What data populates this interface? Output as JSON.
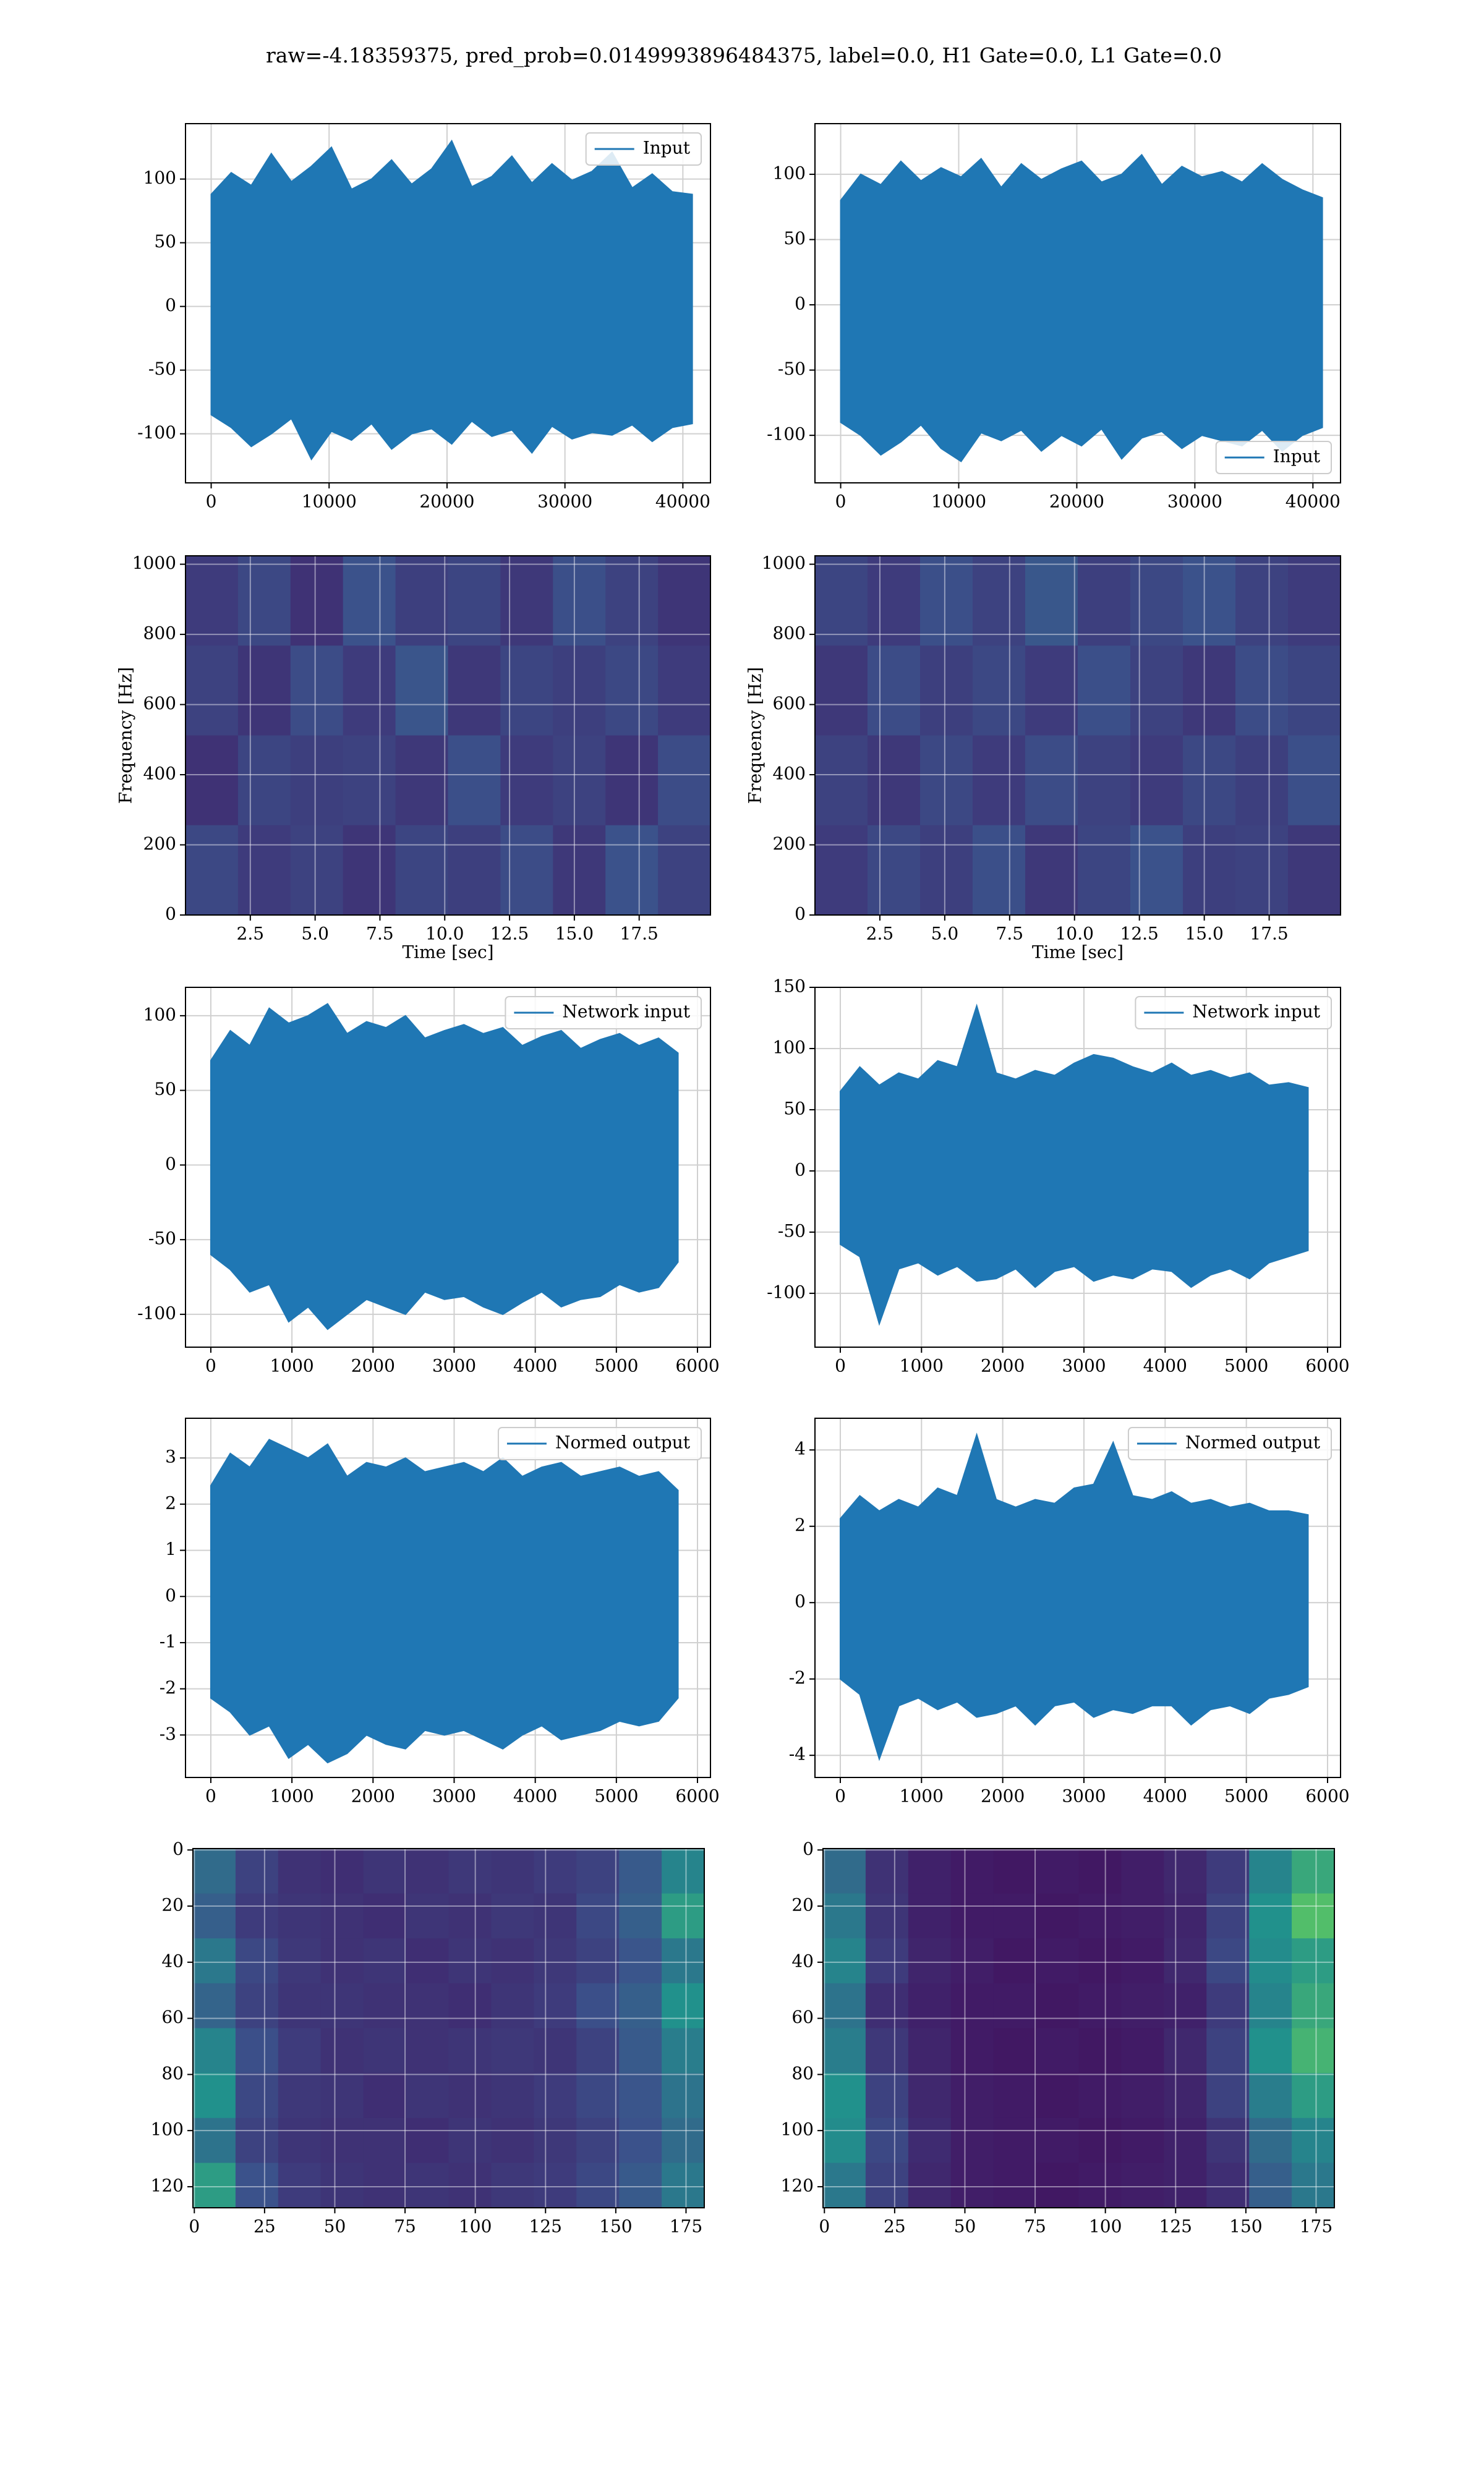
{
  "title": "raw=-4.18359375, pred_prob=0.0149993896484375, label=0.0, H1 Gate=0.0, L1 Gate=0.0",
  "chart_data": [
    {
      "type": "band",
      "legend": "upper right",
      "grid": true,
      "x": [
        0,
        1700,
        3400,
        5100,
        6800,
        8500,
        10200,
        11900,
        13600,
        15300,
        17000,
        18700,
        20400,
        22100,
        23800,
        25500,
        27200,
        28900,
        30600,
        32300,
        34000,
        35700,
        37400,
        39100,
        40800
      ],
      "series": [
        {
          "name": "Input",
          "color": "#1f77b4",
          "high": [
            88,
            105,
            95,
            120,
            98,
            110,
            125,
            92,
            100,
            115,
            96,
            108,
            130,
            94,
            102,
            118,
            97,
            112,
            99,
            106,
            121,
            93,
            104,
            90,
            88
          ],
          "low": [
            -85,
            -95,
            -110,
            -100,
            -88,
            -120,
            -98,
            -105,
            -92,
            -112,
            -100,
            -96,
            -108,
            -90,
            -102,
            -97,
            -115,
            -94,
            -104,
            -99,
            -101,
            -93,
            -106,
            -95,
            -92
          ]
        }
      ],
      "xlim": [
        -2177,
        42340
      ],
      "ylim": [
        -138.5,
        143.5
      ],
      "xticks": [
        0,
        10000,
        20000,
        30000,
        40000
      ],
      "yticks": [
        -100,
        -50,
        0,
        50,
        100
      ]
    },
    {
      "type": "band",
      "legend": "lower right",
      "grid": true,
      "x": [
        0,
        1700,
        3400,
        5100,
        6800,
        8500,
        10200,
        11900,
        13600,
        15300,
        17000,
        18700,
        20400,
        22100,
        23800,
        25500,
        27200,
        28900,
        30600,
        32300,
        34000,
        35700,
        37400,
        39100,
        40800
      ],
      "series": [
        {
          "name": "Input",
          "color": "#1f77b4",
          "high": [
            80,
            100,
            92,
            110,
            95,
            105,
            98,
            112,
            90,
            108,
            96,
            104,
            110,
            94,
            100,
            115,
            92,
            106,
            98,
            102,
            94,
            108,
            96,
            88,
            82
          ],
          "low": [
            -90,
            -100,
            -115,
            -105,
            -92,
            -110,
            -120,
            -98,
            -104,
            -96,
            -112,
            -100,
            -108,
            -95,
            -118,
            -102,
            -97,
            -110,
            -100,
            -104,
            -108,
            -96,
            -112,
            -100,
            -94
          ]
        }
      ],
      "xlim": [
        -2177,
        42340
      ],
      "ylim": [
        -136.4,
        138.8
      ],
      "xticks": [
        0,
        10000,
        20000,
        30000,
        40000
      ],
      "yticks": [
        -100,
        -50,
        0,
        50,
        100
      ]
    },
    {
      "type": "heatmap",
      "grid": true,
      "xlabel": "Time [sec]",
      "ylabel": "Frequency [Hz]",
      "z": [
        [
          0.18,
          0.22,
          0.15,
          0.25,
          0.19,
          0.21,
          0.17,
          0.24,
          0.2,
          0.16
        ],
        [
          0.2,
          0.16,
          0.23,
          0.18,
          0.26,
          0.17,
          0.21,
          0.19,
          0.22,
          0.18
        ],
        [
          0.15,
          0.21,
          0.19,
          0.2,
          0.17,
          0.24,
          0.18,
          0.2,
          0.16,
          0.23
        ],
        [
          0.22,
          0.18,
          0.2,
          0.16,
          0.21,
          0.19,
          0.23,
          0.17,
          0.25,
          0.2
        ]
      ],
      "xlim": [
        0,
        20.25
      ],
      "ylim": [
        0,
        1024
      ],
      "xticks": [
        2.5,
        {
          "value": 5,
          "label": "5.0"
        },
        7.5,
        {
          "value": 10,
          "label": "10.0"
        },
        12.5,
        {
          "value": 15,
          "label": "15.0"
        },
        17.5
      ],
      "yticks": [
        0,
        200,
        400,
        600,
        800,
        1000
      ]
    },
    {
      "type": "heatmap",
      "grid": true,
      "xlabel": "Time [sec]",
      "ylabel": "Frequency [Hz]",
      "z": [
        [
          0.21,
          0.18,
          0.24,
          0.2,
          0.27,
          0.19,
          0.22,
          0.25,
          0.2,
          0.18
        ],
        [
          0.17,
          0.23,
          0.19,
          0.22,
          0.18,
          0.24,
          0.2,
          0.17,
          0.23,
          0.21
        ],
        [
          0.2,
          0.17,
          0.22,
          0.18,
          0.23,
          0.2,
          0.18,
          0.22,
          0.19,
          0.24
        ],
        [
          0.18,
          0.22,
          0.19,
          0.24,
          0.17,
          0.21,
          0.25,
          0.19,
          0.2,
          0.17
        ]
      ],
      "xlim": [
        0,
        20.25
      ],
      "ylim": [
        0,
        1024
      ],
      "xticks": [
        2.5,
        {
          "value": 5,
          "label": "5.0"
        },
        7.5,
        {
          "value": 10,
          "label": "10.0"
        },
        12.5,
        {
          "value": 15,
          "label": "15.0"
        },
        17.5
      ],
      "yticks": [
        0,
        200,
        400,
        600,
        800,
        1000
      ]
    },
    {
      "type": "band",
      "legend": "upper right",
      "grid": true,
      "x": [
        0,
        240,
        480,
        720,
        960,
        1200,
        1440,
        1680,
        1920,
        2160,
        2400,
        2640,
        2880,
        3120,
        3360,
        3600,
        3840,
        4080,
        4320,
        4560,
        4800,
        5040,
        5280,
        5520,
        5760
      ],
      "series": [
        {
          "name": "Network input",
          "color": "#1f77b4",
          "high": [
            70,
            90,
            80,
            105,
            95,
            100,
            108,
            88,
            96,
            92,
            100,
            85,
            90,
            94,
            88,
            92,
            80,
            86,
            90,
            78,
            84,
            88,
            80,
            85,
            75
          ],
          "low": [
            -60,
            -70,
            -85,
            -80,
            -105,
            -95,
            -110,
            -100,
            -90,
            -95,
            -100,
            -85,
            -90,
            -88,
            -95,
            -100,
            -92,
            -85,
            -95,
            -90,
            -88,
            -80,
            -85,
            -82,
            -65
          ]
        }
      ],
      "xlim": [
        -312,
        6160
      ],
      "ylim": [
        -122,
        119
      ],
      "xticks": [
        0,
        1000,
        2000,
        3000,
        4000,
        5000,
        6000
      ],
      "yticks": [
        -100,
        -50,
        0,
        50,
        100
      ]
    },
    {
      "type": "band",
      "legend": "upper right",
      "grid": true,
      "x": [
        0,
        240,
        480,
        720,
        960,
        1200,
        1440,
        1680,
        1920,
        2160,
        2400,
        2640,
        2880,
        3120,
        3360,
        3600,
        3840,
        4080,
        4320,
        4560,
        4800,
        5040,
        5280,
        5520,
        5760
      ],
      "series": [
        {
          "name": "Network input",
          "color": "#1f77b4",
          "high": [
            65,
            85,
            70,
            80,
            75,
            90,
            85,
            135,
            80,
            75,
            82,
            78,
            88,
            95,
            92,
            85,
            80,
            88,
            78,
            82,
            76,
            80,
            70,
            72,
            68
          ],
          "low": [
            -60,
            -70,
            -125,
            -80,
            -75,
            -85,
            -78,
            -90,
            -88,
            -80,
            -95,
            -82,
            -78,
            -90,
            -85,
            -88,
            -80,
            -82,
            -95,
            -85,
            -80,
            -88,
            -75,
            -70,
            -65
          ]
        }
      ],
      "xlim": [
        -312,
        6160
      ],
      "ylim": [
        -144,
        150
      ],
      "xticks": [
        0,
        1000,
        2000,
        3000,
        4000,
        5000,
        6000
      ],
      "yticks": [
        -100,
        -50,
        0,
        50,
        100,
        150
      ]
    },
    {
      "type": "band",
      "legend": "upper right",
      "grid": true,
      "x": [
        0,
        240,
        480,
        720,
        960,
        1200,
        1440,
        1680,
        1920,
        2160,
        2400,
        2640,
        2880,
        3120,
        3360,
        3600,
        3840,
        4080,
        4320,
        4560,
        4800,
        5040,
        5280,
        5520,
        5760
      ],
      "series": [
        {
          "name": "Normed output",
          "color": "#1f77b4",
          "high": [
            2.4,
            3.1,
            2.8,
            3.4,
            3.2,
            3.0,
            3.3,
            2.6,
            2.9,
            2.8,
            3.0,
            2.7,
            2.8,
            2.9,
            2.7,
            3.0,
            2.6,
            2.8,
            2.9,
            2.6,
            2.7,
            2.8,
            2.6,
            2.7,
            2.3
          ],
          "low": [
            -2.2,
            -2.5,
            -3.0,
            -2.8,
            -3.5,
            -3.2,
            -3.6,
            -3.4,
            -3.0,
            -3.2,
            -3.3,
            -2.9,
            -3.0,
            -2.9,
            -3.1,
            -3.3,
            -3.0,
            -2.8,
            -3.1,
            -3.0,
            -2.9,
            -2.7,
            -2.8,
            -2.7,
            -2.2
          ]
        }
      ],
      "xlim": [
        -312,
        6160
      ],
      "ylim": [
        -3.92,
        3.86
      ],
      "xticks": [
        0,
        1000,
        2000,
        3000,
        4000,
        5000,
        6000
      ],
      "yticks": [
        -3,
        -2,
        -1,
        0,
        1,
        2,
        3
      ]
    },
    {
      "type": "band",
      "legend": "upper right",
      "grid": true,
      "x": [
        0,
        240,
        480,
        720,
        960,
        1200,
        1440,
        1680,
        1920,
        2160,
        2400,
        2640,
        2880,
        3120,
        3360,
        3600,
        3840,
        4080,
        4320,
        4560,
        4800,
        5040,
        5280,
        5520,
        5760
      ],
      "series": [
        {
          "name": "Normed output",
          "color": "#1f77b4",
          "high": [
            2.2,
            2.8,
            2.4,
            2.7,
            2.5,
            3.0,
            2.8,
            4.4,
            2.7,
            2.5,
            2.7,
            2.6,
            3.0,
            3.1,
            4.2,
            2.8,
            2.7,
            2.9,
            2.6,
            2.7,
            2.5,
            2.6,
            2.4,
            2.4,
            2.3
          ],
          "low": [
            -2.0,
            -2.4,
            -4.1,
            -2.7,
            -2.5,
            -2.8,
            -2.6,
            -3.0,
            -2.9,
            -2.7,
            -3.2,
            -2.7,
            -2.6,
            -3.0,
            -2.8,
            -2.9,
            -2.7,
            -2.7,
            -3.2,
            -2.8,
            -2.7,
            -2.9,
            -2.5,
            -2.4,
            -2.2
          ]
        }
      ],
      "xlim": [
        -312,
        6160
      ],
      "ylim": [
        -4.58,
        4.83
      ],
      "xticks": [
        0,
        1000,
        2000,
        3000,
        4000,
        5000,
        6000
      ],
      "yticks": [
        -4,
        -2,
        0,
        2,
        4
      ]
    },
    {
      "type": "heatmap",
      "grid": true,
      "z": [
        [
          0.35,
          0.2,
          0.15,
          0.14,
          0.16,
          0.15,
          0.17,
          0.16,
          0.18,
          0.2,
          0.28,
          0.45
        ],
        [
          0.3,
          0.18,
          0.16,
          0.15,
          0.14,
          0.16,
          0.15,
          0.17,
          0.16,
          0.22,
          0.3,
          0.55
        ],
        [
          0.4,
          0.22,
          0.17,
          0.15,
          0.16,
          0.14,
          0.16,
          0.15,
          0.17,
          0.2,
          0.26,
          0.4
        ],
        [
          0.32,
          0.2,
          0.16,
          0.16,
          0.15,
          0.15,
          0.14,
          0.16,
          0.18,
          0.24,
          0.3,
          0.5
        ],
        [
          0.45,
          0.24,
          0.18,
          0.15,
          0.16,
          0.15,
          0.16,
          0.17,
          0.16,
          0.2,
          0.28,
          0.42
        ],
        [
          0.5,
          0.22,
          0.17,
          0.16,
          0.14,
          0.16,
          0.15,
          0.16,
          0.18,
          0.22,
          0.26,
          0.38
        ],
        [
          0.38,
          0.2,
          0.16,
          0.15,
          0.15,
          0.14,
          0.16,
          0.15,
          0.17,
          0.2,
          0.25,
          0.35
        ],
        [
          0.55,
          0.25,
          0.18,
          0.16,
          0.15,
          0.16,
          0.15,
          0.17,
          0.18,
          0.22,
          0.28,
          0.4
        ]
      ],
      "xlim": [
        -0.5,
        181.5
      ],
      "ylim": [
        127.5,
        -0.5
      ],
      "xticks": [
        0,
        25,
        50,
        75,
        100,
        125,
        150,
        175
      ],
      "yticks": [
        0,
        20,
        40,
        60,
        80,
        100,
        120
      ]
    },
    {
      "type": "heatmap",
      "grid": true,
      "z": [
        [
          0.35,
          0.15,
          0.1,
          0.08,
          0.07,
          0.08,
          0.07,
          0.09,
          0.12,
          0.18,
          0.45,
          0.6
        ],
        [
          0.4,
          0.16,
          0.1,
          0.08,
          0.08,
          0.07,
          0.08,
          0.09,
          0.11,
          0.2,
          0.5,
          0.7
        ],
        [
          0.45,
          0.18,
          0.11,
          0.09,
          0.07,
          0.08,
          0.07,
          0.08,
          0.12,
          0.22,
          0.48,
          0.55
        ],
        [
          0.38,
          0.14,
          0.1,
          0.08,
          0.08,
          0.07,
          0.08,
          0.09,
          0.1,
          0.18,
          0.45,
          0.6
        ],
        [
          0.42,
          0.17,
          0.11,
          0.08,
          0.07,
          0.08,
          0.07,
          0.08,
          0.12,
          0.2,
          0.5,
          0.65
        ],
        [
          0.5,
          0.2,
          0.12,
          0.09,
          0.08,
          0.07,
          0.08,
          0.09,
          0.11,
          0.2,
          0.42,
          0.55
        ],
        [
          0.48,
          0.22,
          0.13,
          0.09,
          0.08,
          0.08,
          0.07,
          0.08,
          0.1,
          0.16,
          0.35,
          0.45
        ],
        [
          0.4,
          0.2,
          0.12,
          0.09,
          0.08,
          0.07,
          0.08,
          0.09,
          0.1,
          0.14,
          0.3,
          0.4
        ]
      ],
      "xlim": [
        -0.5,
        181.5
      ],
      "ylim": [
        127.5,
        -0.5
      ],
      "xticks": [
        0,
        25,
        50,
        75,
        100,
        125,
        150,
        175
      ],
      "yticks": [
        0,
        20,
        40,
        60,
        80,
        100,
        120
      ]
    }
  ]
}
